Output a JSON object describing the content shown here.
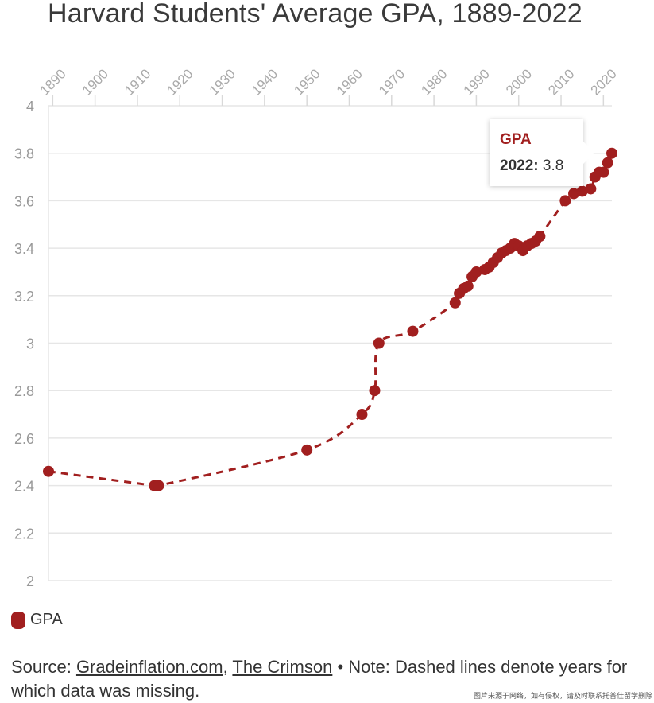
{
  "chart_data": {
    "type": "line",
    "title": "Harvard Students' Average GPA, 1889-2022",
    "xlabel": "",
    "ylabel": "",
    "xlim": [
      1889,
      2022
    ],
    "ylim": [
      2,
      4
    ],
    "x_ticks": [
      "1890",
      "1900",
      "1910",
      "1920",
      "1930",
      "1940",
      "1950",
      "1960",
      "1970",
      "1980",
      "1990",
      "2000",
      "2010",
      "2020"
    ],
    "y_ticks": [
      "4",
      "3.8",
      "3.6",
      "3.4",
      "3.2",
      "3",
      "2.8",
      "2.6",
      "2.4",
      "2.2",
      "2"
    ],
    "grid": true,
    "line_style": "dashed",
    "color": "#a11f1f",
    "series": [
      {
        "name": "GPA",
        "points": [
          [
            1889,
            2.46
          ],
          [
            1914,
            2.4
          ],
          [
            1915,
            2.4
          ],
          [
            1950,
            2.55
          ],
          [
            1963,
            2.7
          ],
          [
            1966,
            2.8
          ],
          [
            1967,
            3.0
          ],
          [
            1975,
            3.05
          ],
          [
            1985,
            3.17
          ],
          [
            1986,
            3.21
          ],
          [
            1987,
            3.23
          ],
          [
            1988,
            3.24
          ],
          [
            1989,
            3.28
          ],
          [
            1990,
            3.3
          ],
          [
            1992,
            3.31
          ],
          [
            1993,
            3.32
          ],
          [
            1994,
            3.34
          ],
          [
            1995,
            3.36
          ],
          [
            1996,
            3.38
          ],
          [
            1997,
            3.39
          ],
          [
            1998,
            3.4
          ],
          [
            1999,
            3.42
          ],
          [
            2000,
            3.41
          ],
          [
            2001,
            3.39
          ],
          [
            2002,
            3.41
          ],
          [
            2003,
            3.42
          ],
          [
            2004,
            3.43
          ],
          [
            2005,
            3.45
          ],
          [
            2011,
            3.6
          ],
          [
            2013,
            3.63
          ],
          [
            2015,
            3.64
          ],
          [
            2017,
            3.65
          ],
          [
            2018,
            3.7
          ],
          [
            2019,
            3.72
          ],
          [
            2020,
            3.72
          ],
          [
            2021,
            3.76
          ],
          [
            2022,
            3.8
          ]
        ]
      }
    ],
    "legend": {
      "label": "GPA",
      "placement": "bottom-left"
    },
    "tooltip": {
      "series": "GPA",
      "year": "2022:",
      "value": "3.8"
    }
  },
  "footer": {
    "prefix": "Source: ",
    "link1": "Gradeinflation.com",
    "sep": ", ",
    "link2": "The Crimson",
    "note": " • Note: Dashed lines denote years for which data was missing."
  },
  "watermark": "图片来源于网络，如有侵权，请及时联系托普仕留学删除"
}
